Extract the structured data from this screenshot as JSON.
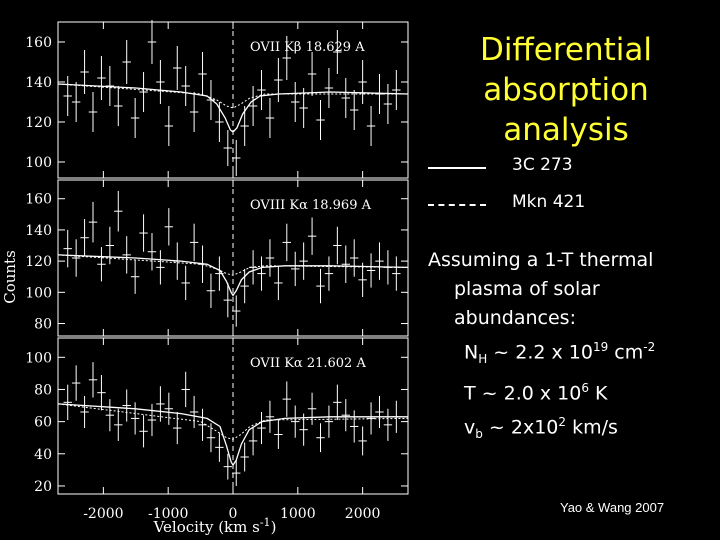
{
  "chart_data": {
    "type": "scatter",
    "ylabel": "Counts",
    "xlabel": "Velocity (km s",
    "xlabel_sup": "-1",
    "xlabel_tail": ")",
    "xlim": [
      -2700,
      2700
    ],
    "x_ticks": [
      "-2000",
      "-1000",
      "0",
      "1000",
      "2000"
    ],
    "x_tick_values": [
      -2000,
      -1000,
      0,
      1000,
      2000
    ],
    "velocity_marker": 0,
    "panels": [
      {
        "label": "OVII Kβ  18.629 A",
        "ylim": [
          92,
          170
        ],
        "y_ticks": [
          100,
          120,
          140,
          160
        ],
        "data": {
          "x": [
            -2550,
            -2420,
            -2290,
            -2160,
            -2030,
            -1900,
            -1770,
            -1640,
            -1510,
            -1380,
            -1250,
            -1120,
            -990,
            -860,
            -730,
            -600,
            -470,
            -340,
            -210,
            -80,
            50,
            180,
            310,
            440,
            570,
            700,
            830,
            960,
            1090,
            1220,
            1350,
            1480,
            1610,
            1740,
            1870,
            2000,
            2130,
            2260,
            2390,
            2520
          ],
          "y": [
            133,
            130,
            145,
            125,
            142,
            138,
            128,
            150,
            122,
            135,
            160,
            140,
            118,
            147,
            138,
            125,
            144,
            131,
            120,
            107,
            102,
            118,
            128,
            136,
            122,
            141,
            152,
            130,
            127,
            144,
            121,
            137,
            155,
            132,
            126,
            140,
            118,
            134,
            129,
            136
          ],
          "err": [
            10,
            10,
            11,
            10,
            11,
            10,
            10,
            11,
            10,
            10,
            11,
            11,
            10,
            11,
            10,
            10,
            11,
            10,
            10,
            9,
            9,
            10,
            10,
            10,
            10,
            11,
            11,
            10,
            10,
            11,
            10,
            10,
            11,
            10,
            10,
            11,
            10,
            10,
            10,
            10
          ]
        },
        "model_3c273": {
          "x": [
            -2700,
            -1500,
            -800,
            -400,
            -250,
            -120,
            -40,
            0,
            60,
            150,
            280,
            420,
            700,
            1500,
            2700
          ],
          "y": [
            139,
            137,
            135,
            133,
            129,
            122,
            116,
            115,
            117,
            124,
            130,
            133,
            134,
            135,
            134
          ]
        },
        "model_mkn421": {
          "x": [
            -2700,
            -500,
            -250,
            -100,
            0,
            120,
            260,
            500,
            2700
          ],
          "y": [
            139,
            134,
            131,
            128,
            127,
            129,
            132,
            134,
            134
          ]
        }
      },
      {
        "label": "OVIII Kα  18.969 A",
        "ylim": [
          72,
          172
        ],
        "y_ticks": [
          80,
          100,
          120,
          140,
          160
        ],
        "data": {
          "x": [
            -2550,
            -2420,
            -2290,
            -2160,
            -2030,
            -1900,
            -1770,
            -1640,
            -1510,
            -1380,
            -1250,
            -1120,
            -990,
            -860,
            -730,
            -600,
            -470,
            -340,
            -210,
            -80,
            50,
            180,
            310,
            440,
            570,
            700,
            830,
            960,
            1090,
            1220,
            1350,
            1480,
            1610,
            1740,
            1870,
            2000,
            2130,
            2260,
            2390,
            2520
          ],
          "y": [
            128,
            122,
            135,
            145,
            118,
            130,
            152,
            124,
            110,
            138,
            126,
            116,
            142,
            120,
            106,
            132,
            118,
            101,
            112,
            95,
            88,
            104,
            116,
            112,
            122,
            106,
            132,
            115,
            120,
            136,
            104,
            112,
            130,
            118,
            122,
            108,
            114,
            120,
            116,
            112
          ],
          "err": [
            12,
            12,
            12,
            13,
            11,
            12,
            13,
            12,
            11,
            12,
            12,
            11,
            12,
            12,
            11,
            12,
            12,
            11,
            11,
            11,
            10,
            11,
            11,
            11,
            12,
            11,
            12,
            11,
            12,
            12,
            11,
            11,
            12,
            12,
            12,
            11,
            11,
            12,
            11,
            11
          ]
        },
        "model_3c273": {
          "x": [
            -2700,
            -1500,
            -800,
            -400,
            -200,
            -100,
            -30,
            0,
            50,
            130,
            250,
            450,
            800,
            1500,
            2700
          ],
          "y": [
            124,
            122,
            120,
            118,
            114,
            107,
            100,
            98,
            101,
            108,
            113,
            116,
            117,
            117,
            116
          ]
        },
        "model_mkn421": {
          "x": [
            -2700,
            -500,
            -250,
            -100,
            0,
            120,
            260,
            500,
            2700
          ],
          "y": [
            124,
            118,
            115,
            112,
            111,
            113,
            116,
            117,
            116
          ]
        }
      },
      {
        "label": "OVII Kα  21.602 A",
        "ylim": [
          15,
          112
        ],
        "y_ticks": [
          20,
          40,
          60,
          80,
          100
        ],
        "data": {
          "x": [
            -2550,
            -2420,
            -2290,
            -2160,
            -2030,
            -1900,
            -1770,
            -1640,
            -1510,
            -1380,
            -1250,
            -1120,
            -990,
            -860,
            -730,
            -600,
            -470,
            -340,
            -210,
            -80,
            50,
            180,
            310,
            440,
            570,
            700,
            830,
            960,
            1090,
            1220,
            1350,
            1480,
            1610,
            1740,
            1870,
            2000,
            2130,
            2260,
            2390,
            2520
          ],
          "y": [
            72,
            84,
            66,
            86,
            78,
            64,
            58,
            70,
            62,
            54,
            61,
            71,
            68,
            56,
            80,
            66,
            58,
            50,
            44,
            32,
            28,
            38,
            48,
            56,
            63,
            52,
            74,
            60,
            55,
            68,
            50,
            60,
            72,
            64,
            57,
            48,
            62,
            66,
            58,
            63
          ],
          "err": [
            11,
            11,
            10,
            11,
            11,
            10,
            10,
            10,
            10,
            10,
            10,
            11,
            10,
            10,
            11,
            10,
            10,
            9,
            9,
            8,
            8,
            9,
            9,
            10,
            10,
            9,
            11,
            10,
            10,
            10,
            9,
            10,
            11,
            10,
            10,
            9,
            10,
            10,
            10,
            10
          ]
        },
        "model_3c273": {
          "x": [
            -2700,
            -1500,
            -800,
            -400,
            -200,
            -100,
            -30,
            0,
            50,
            130,
            250,
            450,
            800,
            1500,
            2700
          ],
          "y": [
            71,
            68,
            65,
            62,
            57,
            45,
            35,
            33,
            36,
            46,
            55,
            60,
            62,
            63,
            63
          ]
        },
        "model_mkn421": {
          "x": [
            -2700,
            -500,
            -250,
            -100,
            0,
            120,
            260,
            500,
            2700
          ],
          "y": [
            71,
            60,
            54,
            50,
            49,
            52,
            57,
            61,
            62
          ]
        }
      }
    ]
  },
  "title": [
    "Differential",
    "absorption analysis"
  ],
  "legend": [
    {
      "name": "3C 273",
      "style": "solid"
    },
    {
      "name": "Mkn 421",
      "style": "dashed"
    }
  ],
  "description": {
    "line1": "Assuming a 1-T thermal",
    "line2": "plasma of solar",
    "line3": "abundances:",
    "nh_prefix": "N",
    "nh_sub": "H",
    "nh_mid": " ~ 2.2 x 10",
    "nh_exp": "19",
    "nh_unit": " cm",
    "nh_unit_exp": "-2",
    "t_text": "T ~ 2.0 x 10",
    "t_exp": "6",
    "t_unit": " K",
    "vb_prefix": "v",
    "vb_sub": "b",
    "vb_mid": " ~ 2x10",
    "vb_exp": "2",
    "vb_unit": " km/s"
  },
  "credit": "Yao & Wang 2007",
  "colors": {
    "background": "#000000",
    "foreground": "#ffffff",
    "title": "#ffff33"
  }
}
